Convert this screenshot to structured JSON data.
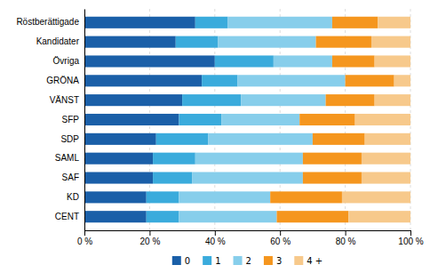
{
  "chart_data": {
    "type": "bar",
    "orientation": "horizontal",
    "stacked": true,
    "categories": [
      "Röstberättigade",
      "Kandidater",
      "Övriga",
      "GRÖNA",
      "VÄNST",
      "SFP",
      "SDP",
      "SAML",
      "SAF",
      "KD",
      "CENT"
    ],
    "series": [
      {
        "name": "0",
        "color": "#1a5fa8",
        "values": [
          34,
          28,
          40,
          36,
          30,
          29,
          22,
          21,
          21,
          19,
          19
        ]
      },
      {
        "name": "1",
        "color": "#3aabdc",
        "values": [
          10,
          13,
          18,
          11,
          18,
          13,
          16,
          13,
          12,
          10,
          10
        ]
      },
      {
        "name": "2",
        "color": "#87ceeb",
        "values": [
          32,
          30,
          18,
          33,
          26,
          24,
          32,
          33,
          34,
          28,
          30
        ]
      },
      {
        "name": "3",
        "color": "#f5961e",
        "values": [
          14,
          17,
          13,
          15,
          15,
          17,
          16,
          18,
          18,
          22,
          22
        ]
      },
      {
        "name": "4 +",
        "color": "#f7c98b",
        "values": [
          10,
          12,
          11,
          5,
          11,
          17,
          14,
          15,
          15,
          21,
          19
        ]
      }
    ],
    "xlim": [
      0,
      100
    ],
    "xticks": [
      {
        "value": 0,
        "label": "0 %"
      },
      {
        "value": 20,
        "label": "20 %"
      },
      {
        "value": 40,
        "label": "40 %"
      },
      {
        "value": 60,
        "label": "60 %"
      },
      {
        "value": 80,
        "label": "80 %"
      },
      {
        "value": 100,
        "label": "100 %"
      }
    ],
    "grid": true,
    "legend": "bottom"
  }
}
